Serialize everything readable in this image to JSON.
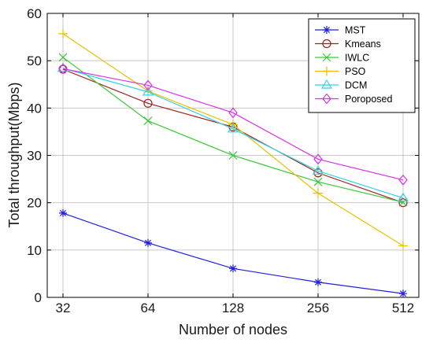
{
  "chart_data": {
    "type": "line",
    "title": "",
    "xlabel": "Number of nodes",
    "ylabel": "Total throughput(Mbps)",
    "x": [
      "32",
      "64",
      "128",
      "256",
      "512"
    ],
    "ylim": [
      0,
      60
    ],
    "yticks": [
      "0",
      "10",
      "20",
      "30",
      "40",
      "50",
      "60"
    ],
    "grid": true,
    "legend_position": "top-right",
    "series": [
      {
        "name": "MST",
        "color": "#1f1fe0",
        "marker": "star",
        "values": [
          17.8,
          11.5,
          6.1,
          3.2,
          0.8
        ]
      },
      {
        "name": "Kmeans",
        "color": "#a01f1f",
        "marker": "circle",
        "values": [
          48.2,
          41.0,
          36.0,
          26.3,
          20.0
        ]
      },
      {
        "name": "IWLC",
        "color": "#3bc83b",
        "marker": "x",
        "values": [
          50.7,
          37.3,
          30.0,
          24.4,
          20.1
        ]
      },
      {
        "name": "PSO",
        "color": "#e6c200",
        "marker": "plus",
        "values": [
          55.7,
          43.6,
          36.5,
          22.0,
          10.9
        ]
      },
      {
        "name": "DCM",
        "color": "#33d1e6",
        "marker": "triangle",
        "values": [
          48.4,
          43.4,
          35.6,
          26.7,
          21.0
        ]
      },
      {
        "name": "Poroposed",
        "color": "#d633e6",
        "marker": "diamond",
        "values": [
          48.3,
          44.8,
          39.0,
          29.2,
          24.8
        ]
      }
    ]
  }
}
